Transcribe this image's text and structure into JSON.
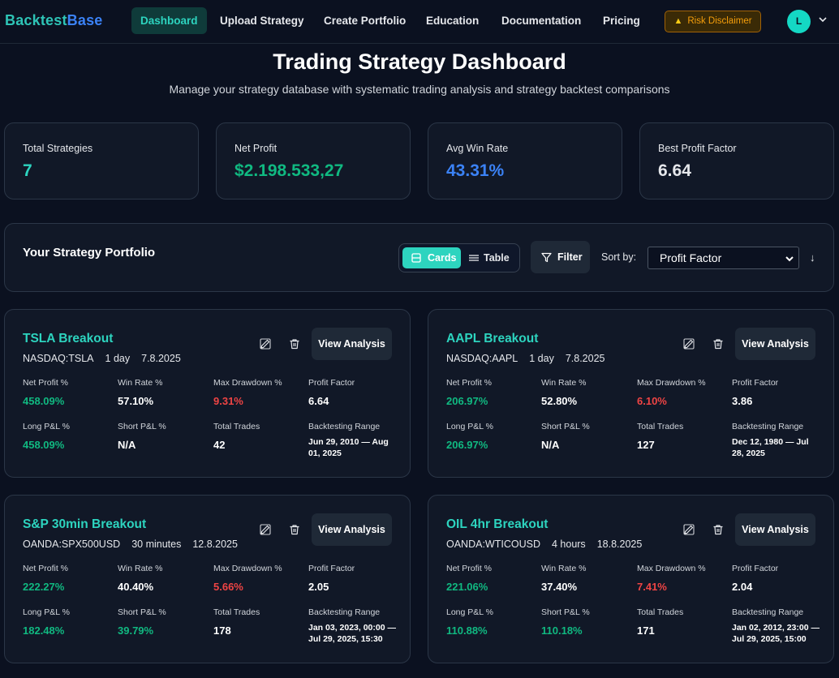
{
  "nav": {
    "brand_a": "Backtest",
    "brand_b": "Base",
    "items": [
      "Dashboard",
      "Upload Strategy",
      "Create Portfolio",
      "Education",
      "Documentation",
      "Pricing"
    ],
    "risk_label": "Risk Disclaimer",
    "avatar_initial": "L"
  },
  "header": {
    "title": "Trading Strategy Dashboard",
    "subtitle": "Manage your strategy database with systematic trading analysis and strategy backtest comparisons"
  },
  "stats": [
    {
      "label": "Total Strategies",
      "value": "7",
      "color": "#2dd4bf"
    },
    {
      "label": "Net Profit",
      "value": "$2.198.533,27",
      "color": "#10b981"
    },
    {
      "label": "Avg Win Rate",
      "value": "43.31%",
      "color": "#3b82f6"
    },
    {
      "label": "Best Profit Factor",
      "value": "6.64",
      "color": "#e5e7eb"
    }
  ],
  "portfolio": {
    "title": "Your Strategy Portfolio",
    "cards_label": "Cards",
    "table_label": "Table",
    "filter_label": "Filter",
    "sort_label": "Sort by:",
    "sort_value": "Profit Factor",
    "sort_direction": "↓"
  },
  "labels": {
    "view": "View Analysis",
    "net_profit": "Net Profit %",
    "win_rate": "Win Rate %",
    "max_dd": "Max Drawdown %",
    "profit_factor": "Profit Factor",
    "long_pl": "Long P&L %",
    "short_pl": "Short P&L %",
    "total_trades": "Total Trades",
    "range": "Backtesting Range"
  },
  "strategies": [
    {
      "name": "TSLA Breakout",
      "symbol": "NASDAQ:TSLA",
      "timeframe": "1 day",
      "date": "7.8.2025",
      "net_profit": "458.09%",
      "win_rate": "57.10%",
      "max_dd": "9.31%",
      "profit_factor": "6.64",
      "long_pl": "458.09%",
      "short_pl": "N/A",
      "total_trades": "42",
      "range": "Jun 29, 2010 — Aug 01, 2025"
    },
    {
      "name": "AAPL Breakout",
      "symbol": "NASDAQ:AAPL",
      "timeframe": "1 day",
      "date": "7.8.2025",
      "net_profit": "206.97%",
      "win_rate": "52.80%",
      "max_dd": "6.10%",
      "profit_factor": "3.86",
      "long_pl": "206.97%",
      "short_pl": "N/A",
      "total_trades": "127",
      "range": "Dec 12, 1980 — Jul 28, 2025"
    },
    {
      "name": "S&P 30min Breakout",
      "symbol": "OANDA:SPX500USD",
      "timeframe": "30 minutes",
      "date": "12.8.2025",
      "net_profit": "222.27%",
      "win_rate": "40.40%",
      "max_dd": "5.66%",
      "profit_factor": "2.05",
      "long_pl": "182.48%",
      "short_pl": "39.79%",
      "total_trades": "178",
      "range": "Jan 03, 2023, 00:00 — Jul 29, 2025, 15:30"
    },
    {
      "name": "OIL 4hr Breakout",
      "symbol": "OANDA:WTICOUSD",
      "timeframe": "4 hours",
      "date": "18.8.2025",
      "net_profit": "221.06%",
      "win_rate": "37.40%",
      "max_dd": "7.41%",
      "profit_factor": "2.04",
      "long_pl": "110.88%",
      "short_pl": "110.18%",
      "total_trades": "171",
      "range": "Jan 02, 2012, 23:00 — Jul 29, 2025, 15:00"
    }
  ],
  "colors": {
    "accent": "#2dd4bf",
    "positive": "#10b981",
    "negative": "#ef4444",
    "background": "#0b1120",
    "card": "#111827"
  }
}
